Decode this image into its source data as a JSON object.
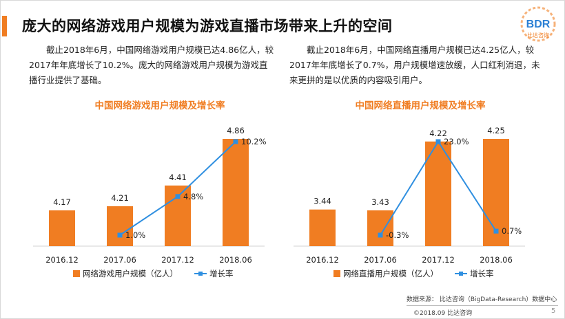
{
  "page": {
    "title": "庞大的网络游戏用户规模为游戏直播市场带来上升的空间",
    "logo_text": "BDR",
    "logo_subtext": "比达咨询",
    "accent_color": "#f07d22",
    "line_color": "#2f8fe0",
    "left_paragraph": "截止2018年6月，中国网络游戏用户规模已达4.86亿人，较2017年年底增长了10.2%。庞大的网络游戏用户规模为游戏直播行业提供了基础。",
    "right_paragraph": "截止2018年6月，中国网络直播用户规模已达4.25亿人，较2017年年底增长了0.7%，用户规模增速放缓，人口红利消退，未来更拼的是以优质的内容吸引用户。",
    "source": "数据来源： 比达咨询（BigData-Research）数据中心",
    "copyright": "©2018.09  比达咨询",
    "page_number": "5"
  },
  "chart_data": [
    {
      "type": "bar",
      "title": "中国网络游戏用户规模及增长率",
      "categories": [
        "2016.12",
        "2017.06",
        "2017.12",
        "2018.06"
      ],
      "series": [
        {
          "name": "网络游戏用户规模（亿人）",
          "kind": "bar",
          "values": [
            4.17,
            4.21,
            4.41,
            4.86
          ],
          "labels": [
            "4.17",
            "4.21",
            "4.41",
            "4.86"
          ]
        },
        {
          "name": "增长率",
          "kind": "line",
          "values": [
            null,
            1.0,
            4.8,
            10.2
          ],
          "labels": [
            "",
            "1.0%",
            "4.8%",
            "10.2%"
          ]
        }
      ],
      "legend": "bottom"
    },
    {
      "type": "bar",
      "title": "中国网络直播用户规模及增长率",
      "categories": [
        "2016.12",
        "2017.06",
        "2017.12",
        "2018.06"
      ],
      "series": [
        {
          "name": "网络直播用户规模（亿人）",
          "kind": "bar",
          "values": [
            3.44,
            3.43,
            4.22,
            4.25
          ],
          "labels": [
            "3.44",
            "3.43",
            "4.22",
            "4.25"
          ]
        },
        {
          "name": "增长率",
          "kind": "line",
          "values": [
            null,
            -0.3,
            23.0,
            0.7
          ],
          "labels": [
            "",
            "-0.3%",
            "23.0%",
            "0.7%"
          ]
        }
      ],
      "legend": "bottom"
    }
  ]
}
